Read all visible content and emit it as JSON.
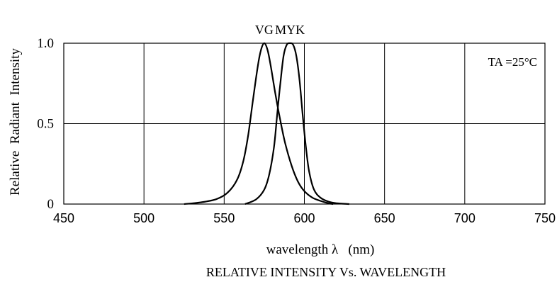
{
  "chart_data": {
    "type": "line",
    "title": "RELATIVE INTENSITY Vs. WAVELENGTH",
    "xlabel": "wavelength λ   (nm)",
    "ylabel": "Relative  Radiant  Intensity",
    "xlim": [
      450,
      750
    ],
    "ylim": [
      0,
      1.0
    ],
    "x_ticks": [
      "450",
      "500",
      "550",
      "600",
      "650",
      "700",
      "750"
    ],
    "y_ticks": [
      "0",
      "0.5",
      "1.0"
    ],
    "grid": true,
    "annotation": "TA =25°C",
    "series": [
      {
        "name": "VG",
        "x": [
          525,
          535,
          545,
          552,
          558,
          562,
          565,
          568,
          571,
          573,
          575,
          577,
          579,
          582,
          585,
          588,
          592,
          596,
          600,
          605,
          610,
          615,
          618
        ],
        "y": [
          0.0,
          0.01,
          0.03,
          0.07,
          0.15,
          0.27,
          0.43,
          0.65,
          0.86,
          0.96,
          1.0,
          0.96,
          0.86,
          0.68,
          0.52,
          0.38,
          0.24,
          0.14,
          0.08,
          0.04,
          0.02,
          0.005,
          0.0
        ]
      },
      {
        "name": "MYK",
        "x": [
          563,
          570,
          575,
          578,
          581,
          583,
          585,
          587,
          589,
          591,
          593,
          595,
          597,
          599,
          601,
          603,
          606,
          610,
          615,
          620,
          628
        ],
        "y": [
          0.0,
          0.03,
          0.09,
          0.18,
          0.35,
          0.55,
          0.75,
          0.92,
          0.99,
          1.0,
          0.99,
          0.92,
          0.77,
          0.55,
          0.35,
          0.2,
          0.09,
          0.04,
          0.015,
          0.005,
          0.0
        ]
      }
    ]
  }
}
